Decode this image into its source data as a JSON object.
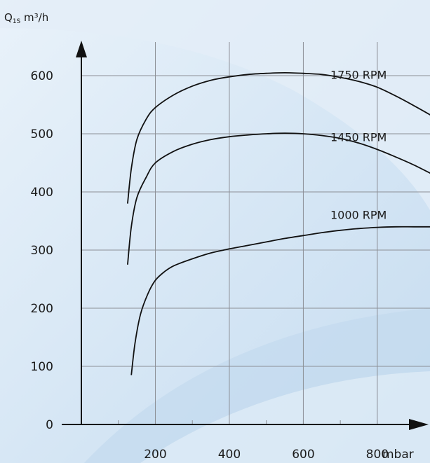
{
  "chart_data": {
    "type": "line",
    "ylabel_prefix": "Q",
    "ylabel_sub": "1S",
    "ylabel_suffix": " m³/h",
    "xlabel": "mbar",
    "xlim": [
      0,
      950
    ],
    "ylim": [
      0,
      600
    ],
    "x_ticks": [
      200,
      400,
      600,
      800
    ],
    "y_ticks": [
      0,
      100,
      200,
      300,
      400,
      500,
      600
    ],
    "grid": true,
    "series": [
      {
        "name": "1750 RPM",
        "x": [
          125,
          135,
          150,
          175,
          200,
          250,
          300,
          350,
          400,
          450,
          500,
          550,
          600,
          650,
          700,
          750,
          800,
          850,
          900,
          950
        ],
        "y": [
          380,
          440,
          490,
          525,
          545,
          567,
          582,
          592,
          598,
          602,
          604,
          605,
          604,
          602,
          597,
          590,
          580,
          565,
          548,
          530
        ]
      },
      {
        "name": "1450 RPM",
        "x": [
          125,
          135,
          150,
          175,
          200,
          250,
          300,
          350,
          400,
          450,
          500,
          550,
          600,
          650,
          700,
          750,
          800,
          850,
          900,
          950
        ],
        "y": [
          275,
          340,
          390,
          425,
          450,
          470,
          482,
          490,
          495,
          498,
          500,
          501,
          500,
          497,
          492,
          484,
          473,
          460,
          446,
          430
        ]
      },
      {
        "name": "1000 RPM",
        "x": [
          135,
          145,
          160,
          180,
          200,
          225,
          250,
          300,
          350,
          400,
          450,
          500,
          550,
          600,
          650,
          700,
          750,
          800,
          850,
          900,
          950
        ],
        "y": [
          85,
          140,
          190,
          225,
          248,
          263,
          273,
          285,
          295,
          302,
          308,
          314,
          320,
          325,
          330,
          334,
          337,
          339,
          340,
          340,
          340
        ]
      }
    ]
  }
}
